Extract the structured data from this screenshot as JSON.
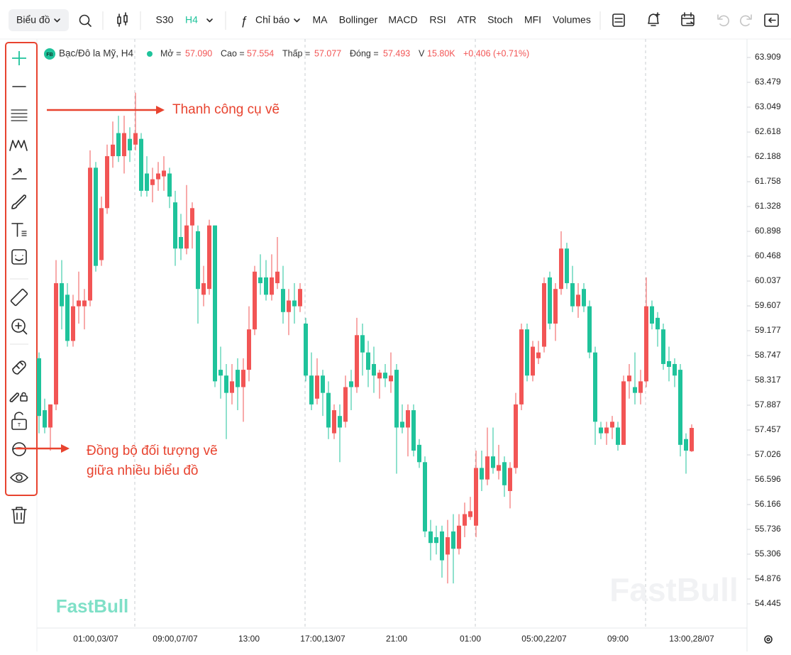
{
  "toolbar": {
    "chart_menu": "Biểu đồ",
    "intervals": [
      "S30",
      "H4"
    ],
    "indicators_menu": "Chỉ báo",
    "indicators": [
      "MA",
      "Bollinger",
      "MACD",
      "RSI",
      "ATR",
      "Stoch",
      "MFI",
      "Volumes"
    ]
  },
  "legend": {
    "badge": "FB",
    "symbol": "Bạc/Đô la Mỹ, H4",
    "items": [
      {
        "label": "Mở =",
        "value": "57.090"
      },
      {
        "label": "Cao =",
        "value": "57.554"
      },
      {
        "label": "Thấp =",
        "value": "57.077"
      },
      {
        "label": "Đóng =",
        "value": "57.493"
      },
      {
        "label": "V",
        "value": "15.80K"
      }
    ],
    "change": "+0.406 (+0.71%)"
  },
  "annotations": [
    "Thanh công cụ vẽ",
    "Đồng bộ đối tượng vẽ",
    "giữa nhiều biểu đồ"
  ],
  "watermark": "FastBull",
  "chart_data": {
    "type": "candlestick",
    "up_color": "#f25555",
    "down_color": "#1fc39b",
    "categories": [
      null,
      null,
      null,
      null,
      null,
      null,
      null,
      null,
      null,
      null,
      "01:00,03/07",
      null,
      null,
      null,
      null,
      null,
      null,
      null,
      null,
      null,
      null,
      null,
      null,
      null,
      "09:00,07/07",
      null,
      null,
      null,
      null,
      null,
      null,
      null,
      null,
      null,
      null,
      null,
      null,
      "13:00",
      null,
      null,
      null,
      null,
      null,
      null,
      null,
      null,
      null,
      null,
      null,
      null,
      "17:00,13/07",
      null,
      null,
      null,
      null,
      null,
      null,
      null,
      null,
      null,
      null,
      null,
      null,
      "21:00",
      null,
      null,
      null,
      null,
      null,
      null,
      null,
      null,
      null,
      null,
      null,
      null,
      "01:00",
      null,
      null,
      null,
      null,
      null,
      null,
      null,
      null,
      null,
      null,
      null,
      null,
      "05:00,22/07",
      null,
      null,
      null,
      null,
      null,
      null,
      null,
      null,
      null,
      null,
      null,
      null,
      "09:00",
      null,
      null,
      null,
      null,
      null,
      null,
      null,
      null,
      null,
      null,
      null,
      null,
      "13:00,28/07"
    ],
    "open": [
      58.7,
      57.8,
      57.5,
      57.9,
      60.0,
      59.8,
      59.0,
      59.6,
      59.6,
      59.7,
      62.0,
      60.4,
      61.3,
      62.2,
      62.6,
      62.2,
      62.5,
      62.4,
      62.5,
      61.9,
      61.7,
      61.8,
      61.85,
      61.9,
      61.4,
      60.8,
      60.6,
      61.0,
      60.9,
      59.8,
      59.9,
      61.0,
      58.5,
      58.4,
      58.1,
      58.5,
      58.2,
      58.5,
      59.2,
      60.1,
      60.1,
      59.8,
      60.0,
      59.9,
      59.5,
      59.7,
      59.6,
      59.3,
      58.4,
      58.0,
      58.4,
      58.1,
      57.4,
      57.7,
      57.6,
      58.3,
      58.2,
      59.1,
      58.8,
      58.6,
      58.35,
      58.45,
      58.3,
      58.5,
      57.6,
      57.5,
      57.8,
      57.2,
      56.9,
      55.7,
      55.6,
      55.7,
      55.3,
      55.7,
      55.4,
      55.8,
      55.95,
      55.8,
      56.8,
      56.6,
      57.0,
      56.75,
      56.9,
      56.4,
      56.8,
      57.9,
      59.2,
      58.4,
      58.7,
      58.9,
      60.1,
      59.3,
      59.9,
      60.6,
      60.0,
      59.6,
      59.9,
      59.6,
      58.8,
      57.5,
      57.4,
      57.5,
      57.5,
      57.2,
      58.3,
      58.2,
      58.1,
      58.3,
      59.6,
      59.4,
      59.2,
      58.65,
      58.6,
      58.5,
      57.3,
      57.09
    ],
    "high": [
      58.8,
      58.0,
      57.9,
      60.4,
      60.4,
      60.0,
      59.8,
      60.2,
      59.9,
      62.3,
      62.1,
      61.5,
      62.4,
      62.8,
      62.9,
      62.9,
      62.7,
      63.3,
      62.6,
      62.2,
      62.0,
      62.1,
      62.2,
      62.0,
      61.6,
      61.2,
      61.7,
      61.4,
      61.0,
      60.3,
      61.1,
      61.0,
      58.9,
      58.6,
      58.6,
      58.7,
      58.7,
      59.6,
      60.3,
      60.5,
      60.4,
      60.5,
      60.8,
      60.3,
      59.9,
      60.0,
      60.0,
      59.4,
      58.8,
      58.7,
      58.5,
      58.3,
      57.9,
      57.9,
      58.4,
      58.5,
      59.4,
      59.3,
      59.0,
      58.9,
      58.5,
      58.6,
      58.8,
      58.6,
      57.9,
      57.9,
      57.9,
      57.3,
      57.0,
      55.9,
      55.8,
      55.8,
      55.9,
      56.0,
      56.0,
      56.2,
      56.3,
      57.1,
      57.1,
      57.5,
      57.5,
      57.2,
      57.0,
      56.9,
      58.1,
      59.3,
      59.3,
      59.0,
      59.0,
      60.1,
      60.2,
      60.0,
      60.9,
      60.7,
      60.3,
      60.0,
      60.0,
      59.7,
      58.9,
      57.6,
      57.6,
      57.7,
      57.6,
      58.4,
      58.6,
      58.8,
      58.5,
      60.1,
      59.7,
      59.5,
      59.3,
      58.9,
      58.7,
      58.6,
      57.4,
      57.554
    ],
    "low": [
      57.4,
      57.4,
      57.1,
      57.8,
      59.2,
      58.9,
      58.9,
      59.3,
      59.2,
      59.6,
      60.2,
      60.3,
      61.2,
      62.0,
      62.1,
      61.9,
      62.1,
      62.3,
      61.5,
      61.5,
      61.4,
      61.6,
      61.6,
      61.3,
      60.3,
      60.4,
      60.5,
      60.6,
      59.3,
      59.6,
      59.8,
      58.2,
      58.0,
      57.3,
      57.9,
      57.8,
      57.6,
      58.3,
      59.1,
      59.8,
      59.7,
      59.7,
      59.9,
      59.3,
      59.1,
      59.3,
      59.5,
      58.3,
      57.8,
      57.9,
      57.7,
      57.3,
      57.3,
      56.9,
      57.5,
      57.8,
      58.1,
      58.4,
      58.2,
      58.1,
      58.0,
      58.2,
      58.1,
      56.7,
      57.4,
      57.0,
      57.0,
      56.8,
      55.6,
      55.2,
      55.3,
      54.9,
      54.8,
      54.8,
      55.3,
      55.6,
      55.9,
      55.6,
      56.4,
      56.5,
      56.7,
      56.6,
      56.3,
      56.1,
      56.7,
      57.8,
      58.3,
      58.3,
      58.6,
      58.8,
      59.2,
      59.0,
      59.8,
      59.9,
      59.5,
      59.4,
      59.5,
      58.7,
      57.2,
      57.3,
      57.2,
      57.3,
      57.1,
      57.2,
      58.0,
      57.9,
      57.9,
      58.2,
      59.2,
      58.9,
      58.5,
      58.3,
      58.2,
      57.0,
      56.7,
      57.077
    ],
    "close": [
      57.7,
      57.5,
      57.9,
      60.0,
      59.6,
      59.0,
      59.6,
      59.7,
      59.7,
      62.0,
      60.3,
      61.3,
      62.2,
      62.4,
      62.2,
      62.6,
      62.3,
      62.6,
      61.6,
      61.6,
      61.8,
      61.9,
      61.95,
      61.5,
      60.6,
      60.6,
      61.0,
      61.3,
      59.9,
      60.0,
      61.0,
      58.3,
      58.4,
      58.1,
      58.3,
      58.2,
      58.5,
      59.2,
      60.2,
      60.0,
      59.8,
      60.1,
      60.2,
      59.5,
      59.7,
      59.6,
      59.9,
      58.4,
      57.9,
      58.4,
      58.1,
      57.5,
      57.8,
      57.5,
      58.2,
      58.2,
      59.1,
      58.8,
      58.5,
      58.4,
      58.45,
      58.35,
      58.4,
      57.5,
      57.5,
      57.8,
      57.1,
      56.9,
      55.7,
      55.5,
      55.5,
      55.2,
      55.6,
      55.4,
      55.8,
      56.0,
      56.05,
      56.8,
      56.6,
      57.0,
      56.8,
      56.85,
      56.5,
      56.8,
      57.9,
      59.2,
      58.4,
      58.9,
      58.8,
      60.0,
      59.3,
      59.9,
      60.6,
      60.0,
      59.6,
      59.8,
      59.6,
      58.8,
      57.6,
      57.4,
      57.5,
      57.6,
      57.2,
      58.3,
      58.4,
      58.1,
      58.3,
      59.6,
      59.3,
      59.2,
      58.6,
      58.55,
      58.4,
      57.2,
      57.1,
      57.493
    ],
    "ylim": [
      54.027,
      64.229
    ],
    "yticks": [
      63.909,
      63.479,
      63.049,
      62.618,
      62.188,
      61.758,
      61.328,
      60.898,
      60.468,
      60.037,
      59.607,
      59.177,
      58.747,
      58.317,
      57.887,
      57.457,
      57.026,
      56.596,
      56.166,
      55.736,
      55.306,
      54.876,
      54.445
    ]
  }
}
